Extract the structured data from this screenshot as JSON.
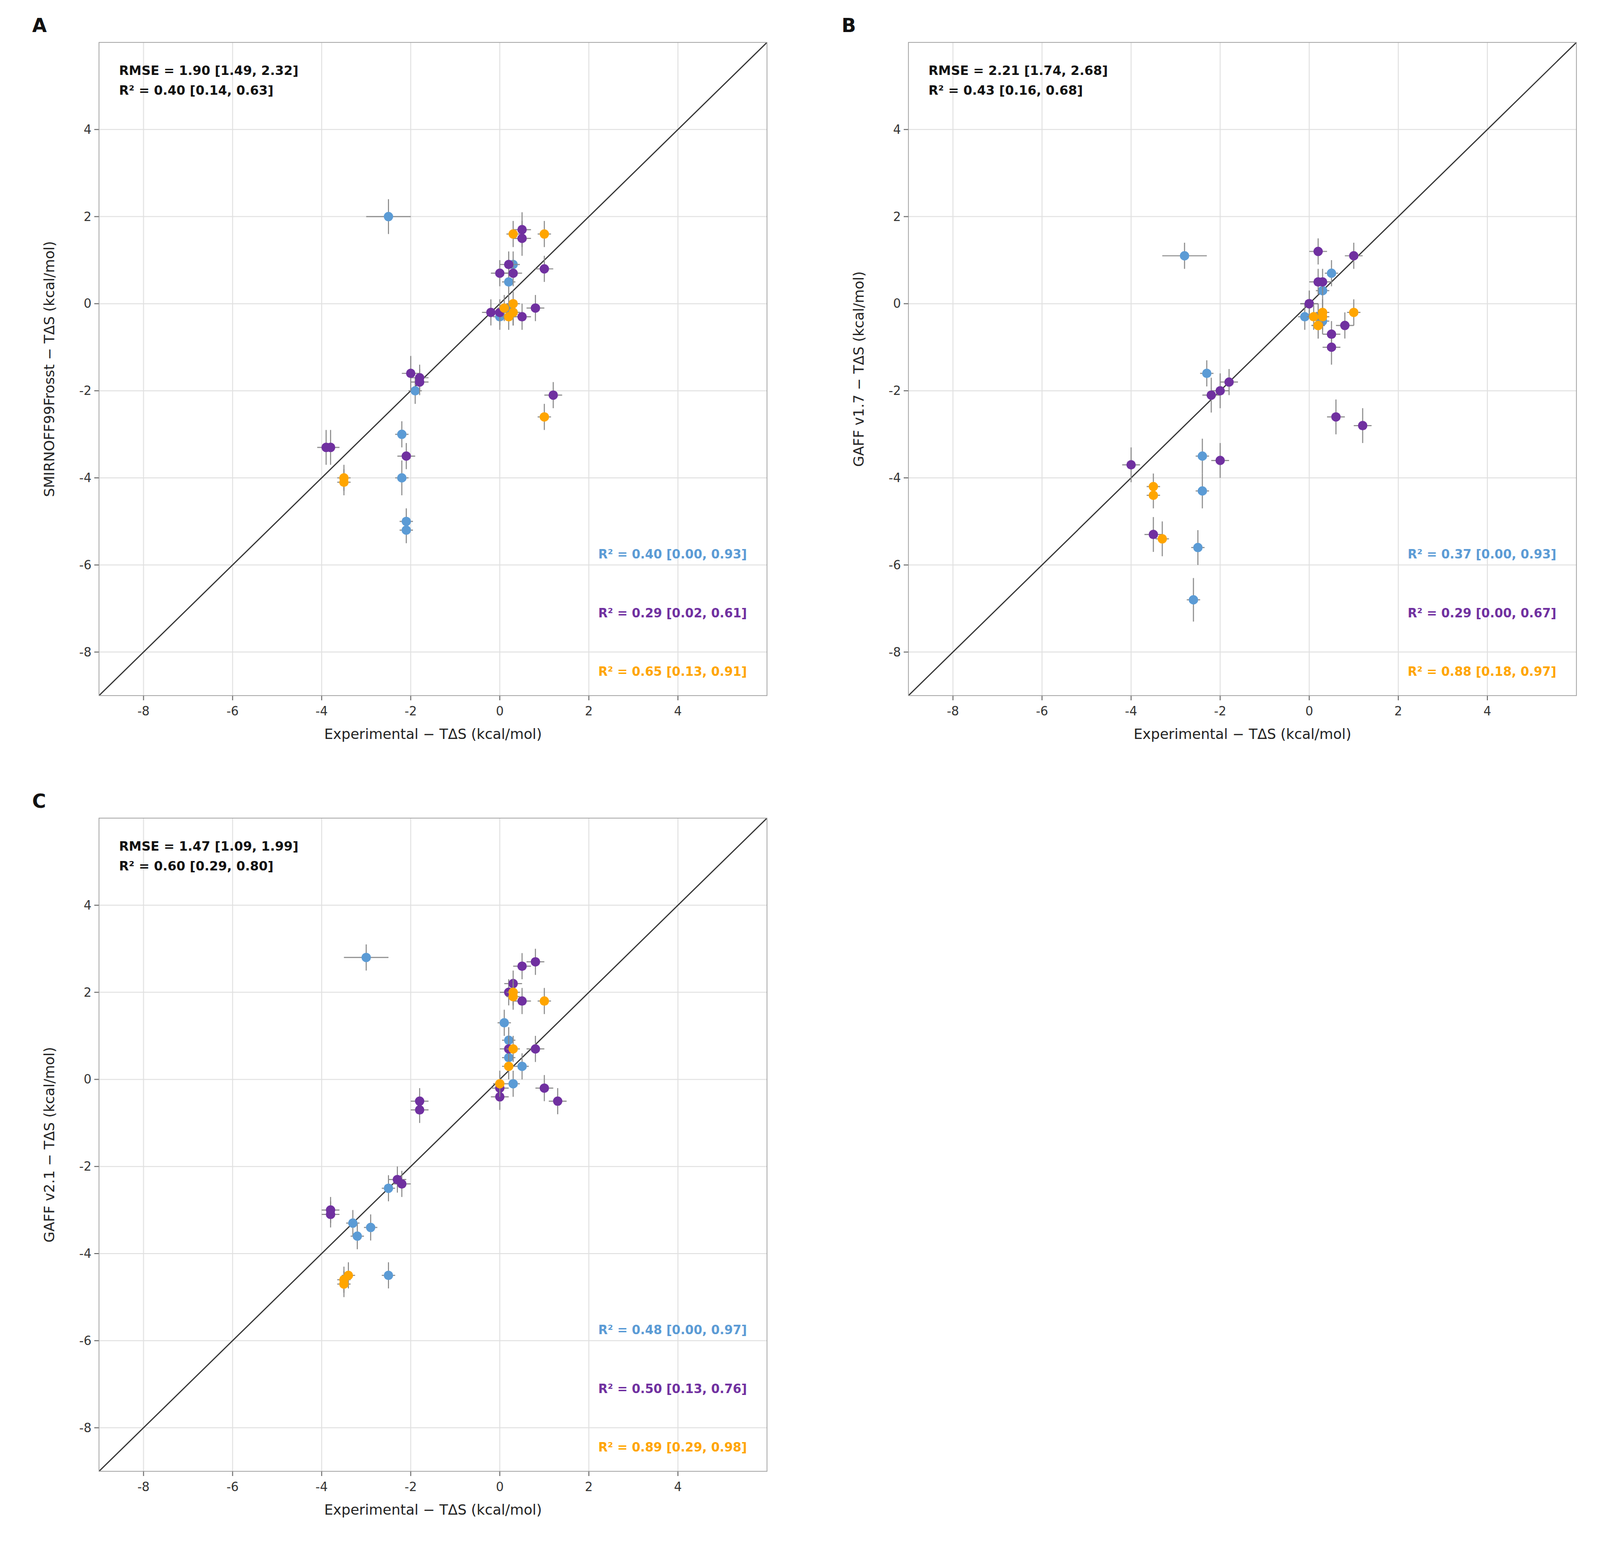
{
  "chart_data": [
    {
      "type": "scatter",
      "title": "A",
      "xlabel": "Experimental − TΔS (kcal/mol)",
      "ylabel": "SMIRNOFF99Frosst − TΔS (kcal/mol)",
      "xlim": [
        -9,
        6
      ],
      "ylim": [
        -9,
        6
      ],
      "xticks": [
        -8,
        -6,
        -4,
        -2,
        0,
        2,
        4
      ],
      "yticks": [
        -8,
        -6,
        -4,
        -2,
        0,
        2,
        4
      ],
      "grid": true,
      "annotations": [
        {
          "text": "RMSE = 1.90 [1.49, 2.32]\nR² = 0.40 [0.14, 0.63]"
        },
        {
          "text": "R² = 0.40 [0.00, 0.93]",
          "color": "#5B9BD5"
        },
        {
          "text": "R² = 0.29 [0.02, 0.61]",
          "color": "#7030A0"
        },
        {
          "text": "R² = 0.65 [0.13, 0.91]",
          "color": "#FFA500"
        }
      ],
      "series": [
        {
          "color": "#5B9BD5",
          "marker": "circle",
          "x": [
            -2.5,
            -1.9,
            -2.2,
            -2.2,
            -2.1,
            -2.1,
            0.3,
            0.2,
            0.2,
            0.3,
            0.0
          ],
          "values": [
            2.0,
            -2.0,
            -3.0,
            -4.0,
            -5.0,
            -5.2,
            0.9,
            0.5,
            -0.1,
            -0.2,
            -0.3
          ],
          "xerr": [
            0.5,
            0.15,
            0.15,
            0.15,
            0.15,
            0.15,
            0.15,
            0.15,
            0.15,
            0.15,
            0.15
          ],
          "yerr": [
            0.4,
            0.3,
            0.3,
            0.4,
            0.3,
            0.3,
            0.3,
            0.3,
            0.3,
            0.3,
            0.3
          ]
        },
        {
          "color": "#7030A0",
          "marker": "circle",
          "x": [
            -3.8,
            -3.9,
            -2.0,
            -2.1,
            -1.8,
            -0.2,
            0.0,
            0.0,
            0.2,
            0.3,
            0.5,
            0.5,
            1.0,
            0.8,
            0.5,
            1.2,
            -1.8
          ],
          "values": [
            -3.3,
            -3.3,
            -1.6,
            -3.5,
            -1.8,
            -0.2,
            -0.2,
            0.7,
            0.9,
            0.7,
            1.7,
            1.5,
            0.8,
            -0.1,
            -0.3,
            -2.1,
            -1.7
          ],
          "xerr": [
            0.2,
            0.2,
            0.2,
            0.2,
            0.2,
            0.2,
            0.2,
            0.2,
            0.2,
            0.2,
            0.2,
            0.2,
            0.2,
            0.2,
            0.2,
            0.2,
            0.2
          ],
          "yerr": [
            0.4,
            0.4,
            0.4,
            0.3,
            0.3,
            0.3,
            0.3,
            0.3,
            0.3,
            0.3,
            0.4,
            0.4,
            0.3,
            0.3,
            0.3,
            0.3,
            0.3
          ]
        },
        {
          "color": "#FFA500",
          "marker": "circle",
          "x": [
            -3.5,
            -3.5,
            0.2,
            0.3,
            0.1,
            0.3,
            0.3,
            1.0,
            1.0
          ],
          "values": [
            -4.0,
            -4.1,
            -0.3,
            -0.2,
            -0.1,
            0.0,
            1.6,
            1.6,
            -2.6
          ],
          "xerr": [
            0.15,
            0.15,
            0.15,
            0.15,
            0.15,
            0.15,
            0.15,
            0.15,
            0.15
          ],
          "yerr": [
            0.3,
            0.3,
            0.3,
            0.3,
            0.3,
            0.3,
            0.3,
            0.3,
            0.3
          ]
        },
        {
          "type": "line",
          "color": "#333333",
          "x": [
            -9,
            6
          ],
          "values": [
            -9,
            6
          ]
        }
      ]
    },
    {
      "type": "scatter",
      "title": "B",
      "xlabel": "Experimental − TΔS (kcal/mol)",
      "ylabel": "GAFF v1.7 − TΔS (kcal/mol)",
      "xlim": [
        -9,
        6
      ],
      "ylim": [
        -9,
        6
      ],
      "xticks": [
        -8,
        -6,
        -4,
        -2,
        0,
        2,
        4
      ],
      "yticks": [
        -8,
        -6,
        -4,
        -2,
        0,
        2,
        4
      ],
      "grid": true,
      "annotations": [
        {
          "text": "RMSE = 2.21 [1.74, 2.68]\nR² = 0.43 [0.16, 0.68]"
        },
        {
          "text": "R² = 0.37 [0.00, 0.93]",
          "color": "#5B9BD5"
        },
        {
          "text": "R² = 0.29 [0.00, 0.67]",
          "color": "#7030A0"
        },
        {
          "text": "R² = 0.88 [0.18, 0.97]",
          "color": "#FFA500"
        }
      ],
      "series": [
        {
          "color": "#5B9BD5",
          "marker": "circle",
          "x": [
            -2.8,
            -2.3,
            -2.4,
            -2.4,
            -2.5,
            -2.6,
            0.5,
            0.3,
            0.2,
            -0.1,
            0.3
          ],
          "values": [
            1.1,
            -1.6,
            -3.5,
            -4.3,
            -5.6,
            -6.8,
            0.7,
            0.3,
            -0.3,
            -0.3,
            -0.4
          ],
          "xerr": [
            0.5,
            0.15,
            0.15,
            0.15,
            0.15,
            0.15,
            0.15,
            0.15,
            0.15,
            0.15,
            0.15
          ],
          "yerr": [
            0.3,
            0.3,
            0.4,
            0.4,
            0.4,
            0.5,
            0.3,
            0.3,
            0.3,
            0.3,
            0.3
          ]
        },
        {
          "color": "#7030A0",
          "marker": "circle",
          "x": [
            -4.0,
            -3.5,
            -2.0,
            -2.2,
            -2.0,
            0.0,
            0.0,
            0.2,
            0.2,
            0.3,
            0.5,
            0.6,
            1.0,
            0.8,
            1.2,
            0.5,
            -1.8
          ],
          "values": [
            -3.7,
            -5.3,
            -3.6,
            -2.1,
            -2.0,
            0.0,
            0.0,
            1.2,
            0.5,
            0.5,
            -1.0,
            -2.6,
            1.1,
            -0.5,
            -2.8,
            -0.7,
            -1.8
          ],
          "xerr": [
            0.2,
            0.2,
            0.2,
            0.2,
            0.2,
            0.2,
            0.2,
            0.2,
            0.2,
            0.2,
            0.2,
            0.2,
            0.2,
            0.2,
            0.2,
            0.2,
            0.2
          ],
          "yerr": [
            0.4,
            0.4,
            0.4,
            0.4,
            0.4,
            0.3,
            0.3,
            0.3,
            0.3,
            0.3,
            0.4,
            0.4,
            0.3,
            0.3,
            0.4,
            0.3,
            0.3
          ]
        },
        {
          "color": "#FFA500",
          "marker": "circle",
          "x": [
            -3.5,
            -3.5,
            -3.3,
            0.1,
            0.2,
            0.2,
            0.3,
            0.3,
            1.0
          ],
          "values": [
            -4.2,
            -4.4,
            -5.4,
            -0.3,
            -0.5,
            -0.5,
            -0.2,
            -0.3,
            -0.2
          ],
          "xerr": [
            0.15,
            0.15,
            0.15,
            0.15,
            0.15,
            0.15,
            0.15,
            0.15,
            0.15
          ],
          "yerr": [
            0.3,
            0.3,
            0.4,
            0.3,
            0.3,
            0.3,
            0.3,
            0.3,
            0.3
          ]
        },
        {
          "type": "line",
          "color": "#333333",
          "x": [
            -9,
            6
          ],
          "values": [
            -9,
            6
          ]
        }
      ]
    },
    {
      "type": "scatter",
      "title": "C",
      "xlabel": "Experimental − TΔS (kcal/mol)",
      "ylabel": "GAFF v2.1 − TΔS (kcal/mol)",
      "xlim": [
        -9,
        6
      ],
      "ylim": [
        -9,
        6
      ],
      "xticks": [
        -8,
        -6,
        -4,
        -2,
        0,
        2,
        4
      ],
      "yticks": [
        -8,
        -6,
        -4,
        -2,
        0,
        2,
        4
      ],
      "grid": true,
      "annotations": [
        {
          "text": "RMSE = 1.47 [1.09, 1.99]\nR² = 0.60 [0.29, 0.80]"
        },
        {
          "text": "R² = 0.48 [0.00, 0.97]",
          "color": "#5B9BD5"
        },
        {
          "text": "R² = 0.50 [0.13, 0.76]",
          "color": "#7030A0"
        },
        {
          "text": "R² = 0.89 [0.29, 0.98]",
          "color": "#FFA500"
        }
      ],
      "series": [
        {
          "color": "#5B9BD5",
          "marker": "circle",
          "x": [
            -3.0,
            -3.3,
            -3.2,
            -2.9,
            -2.5,
            -2.5,
            0.1,
            0.2,
            0.2,
            0.5,
            0.3
          ],
          "values": [
            2.8,
            -3.3,
            -3.6,
            -3.4,
            -2.5,
            -4.5,
            1.3,
            0.9,
            0.5,
            0.3,
            -0.1
          ],
          "xerr": [
            0.5,
            0.15,
            0.15,
            0.15,
            0.15,
            0.15,
            0.15,
            0.15,
            0.15,
            0.15,
            0.15
          ],
          "yerr": [
            0.3,
            0.3,
            0.3,
            0.3,
            0.3,
            0.3,
            0.3,
            0.3,
            0.3,
            0.3,
            0.3
          ]
        },
        {
          "color": "#7030A0",
          "marker": "circle",
          "x": [
            -3.8,
            -3.8,
            -2.2,
            -2.3,
            -1.8,
            0.0,
            0.0,
            0.2,
            0.2,
            0.3,
            0.5,
            0.5,
            0.8,
            0.8,
            1.0,
            1.3,
            -1.8
          ],
          "values": [
            -3.0,
            -3.1,
            -2.4,
            -2.3,
            -0.7,
            -0.4,
            -0.2,
            0.7,
            2.0,
            2.2,
            2.6,
            1.8,
            2.7,
            0.7,
            -0.2,
            -0.5,
            -0.5
          ],
          "xerr": [
            0.2,
            0.2,
            0.2,
            0.2,
            0.2,
            0.2,
            0.2,
            0.2,
            0.2,
            0.2,
            0.2,
            0.2,
            0.2,
            0.2,
            0.2,
            0.2,
            0.2
          ],
          "yerr": [
            0.3,
            0.3,
            0.3,
            0.3,
            0.3,
            0.3,
            0.3,
            0.3,
            0.3,
            0.3,
            0.3,
            0.3,
            0.3,
            0.3,
            0.3,
            0.3,
            0.3
          ]
        },
        {
          "color": "#FFA500",
          "marker": "circle",
          "x": [
            -3.5,
            -3.5,
            -3.4,
            0.0,
            0.2,
            0.3,
            0.3,
            0.3,
            1.0
          ],
          "values": [
            -4.6,
            -4.7,
            -4.5,
            -0.1,
            0.3,
            0.7,
            1.9,
            2.0,
            1.8
          ],
          "xerr": [
            0.15,
            0.15,
            0.15,
            0.15,
            0.15,
            0.15,
            0.15,
            0.15,
            0.15
          ],
          "yerr": [
            0.3,
            0.3,
            0.3,
            0.3,
            0.3,
            0.3,
            0.3,
            0.3,
            0.3
          ]
        },
        {
          "type": "line",
          "color": "#333333",
          "x": [
            -9,
            6
          ],
          "values": [
            -9,
            6
          ]
        }
      ]
    }
  ]
}
